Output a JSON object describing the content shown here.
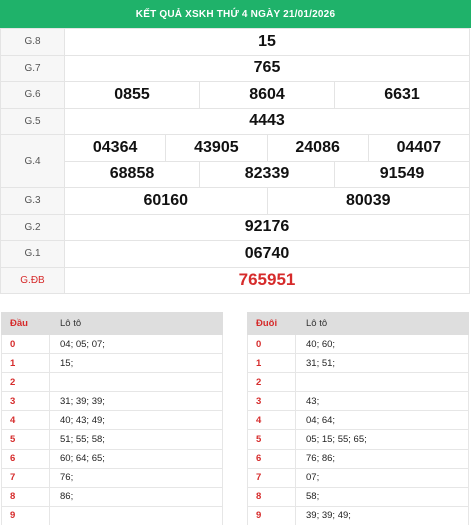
{
  "title": "KẾT QUẢ XSKH THỨ 4 NGÀY 21/01/2026",
  "prizes": [
    {
      "label": "G.8",
      "numbers": [
        "15"
      ]
    },
    {
      "label": "G.7",
      "numbers": [
        "765"
      ]
    },
    {
      "label": "G.6",
      "numbers": [
        "0855",
        "8604",
        "6631"
      ]
    },
    {
      "label": "G.5",
      "numbers": [
        "4443"
      ]
    },
    {
      "label": "G.4",
      "numbers_row1": [
        "04364",
        "43905",
        "24086",
        "04407"
      ],
      "numbers_row2": [
        "68858",
        "82339",
        "91549"
      ]
    },
    {
      "label": "G.3",
      "numbers": [
        "60160",
        "80039"
      ]
    },
    {
      "label": "G.2",
      "numbers": [
        "92176"
      ]
    },
    {
      "label": "G.1",
      "numbers": [
        "06740"
      ]
    },
    {
      "label": "G.ĐB",
      "numbers": [
        "765951"
      ]
    }
  ],
  "loto_head": {
    "col1": "Đầu",
    "col2": "Lô tô",
    "rows": [
      {
        "idx": "0",
        "vals": "04; 05; 07;"
      },
      {
        "idx": "1",
        "vals": "15;"
      },
      {
        "idx": "2",
        "vals": ""
      },
      {
        "idx": "3",
        "vals": "31; 39; 39;"
      },
      {
        "idx": "4",
        "vals": "40; 43; 49;"
      },
      {
        "idx": "5",
        "vals": "51; 55; 58;"
      },
      {
        "idx": "6",
        "vals": "60; 64; 65;"
      },
      {
        "idx": "7",
        "vals": "76;"
      },
      {
        "idx": "8",
        "vals": "86;"
      },
      {
        "idx": "9",
        "vals": ""
      }
    ]
  },
  "loto_tail": {
    "col1": "Đuôi",
    "col2": "Lô tô",
    "rows": [
      {
        "idx": "0",
        "vals": "40; 60;"
      },
      {
        "idx": "1",
        "vals": "31; 51;"
      },
      {
        "idx": "2",
        "vals": ""
      },
      {
        "idx": "3",
        "vals": "43;"
      },
      {
        "idx": "4",
        "vals": "04; 64;"
      },
      {
        "idx": "5",
        "vals": "05; 15; 55; 65;"
      },
      {
        "idx": "6",
        "vals": "76; 86;"
      },
      {
        "idx": "7",
        "vals": "07;"
      },
      {
        "idx": "8",
        "vals": "58;"
      },
      {
        "idx": "9",
        "vals": "39; 39; 49;"
      }
    ]
  },
  "colors": {
    "header_bg": "#1fb26a",
    "special": "#d62b2b"
  }
}
